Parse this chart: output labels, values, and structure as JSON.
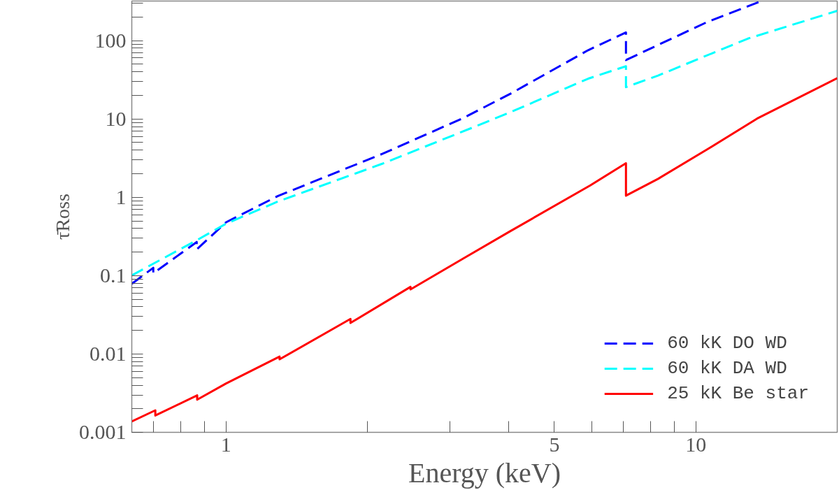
{
  "chart_data": {
    "type": "line",
    "xlabel": "Energy (keV)",
    "ylabel": "τ̄Ross",
    "log": "xy",
    "legend": "bottom right",
    "grid": false,
    "xlim": [
      0.63,
      20
    ],
    "ylim": [
      0.001,
      320
    ],
    "xticks": [
      {
        "value": 0.7,
        "label": null
      },
      {
        "value": 0.8,
        "label": null
      },
      {
        "value": 0.9,
        "label": null
      },
      1,
      {
        "value": 2,
        "label": null
      },
      {
        "value": 3,
        "label": null
      },
      {
        "value": 4,
        "label": null
      },
      5,
      {
        "value": 6,
        "label": null
      },
      {
        "value": 7,
        "label": null
      },
      {
        "value": 8,
        "label": null
      },
      {
        "value": 9,
        "label": null
      },
      10
    ],
    "yticks": [
      0.001,
      {
        "value": 0.002,
        "label": null
      },
      {
        "value": 0.003,
        "label": null
      },
      {
        "value": 0.004,
        "label": null
      },
      {
        "value": 0.005,
        "label": null
      },
      {
        "value": 0.006,
        "label": null
      },
      {
        "value": 0.007,
        "label": null
      },
      {
        "value": 0.008,
        "label": null
      },
      {
        "value": 0.009,
        "label": null
      },
      0.01,
      {
        "value": 0.02,
        "label": null
      },
      {
        "value": 0.03,
        "label": null
      },
      {
        "value": 0.04,
        "label": null
      },
      {
        "value": 0.05,
        "label": null
      },
      {
        "value": 0.06,
        "label": null
      },
      {
        "value": 0.07,
        "label": null
      },
      {
        "value": 0.08,
        "label": null
      },
      {
        "value": 0.09,
        "label": null
      },
      0.1,
      {
        "value": 0.2,
        "label": null
      },
      {
        "value": 0.3,
        "label": null
      },
      {
        "value": 0.4,
        "label": null
      },
      {
        "value": 0.5,
        "label": null
      },
      {
        "value": 0.6,
        "label": null
      },
      {
        "value": 0.7,
        "label": null
      },
      {
        "value": 0.8,
        "label": null
      },
      {
        "value": 0.9,
        "label": null
      },
      1,
      {
        "value": 2,
        "label": null
      },
      {
        "value": 3,
        "label": null
      },
      {
        "value": 4,
        "label": null
      },
      {
        "value": 5,
        "label": null
      },
      {
        "value": 6,
        "label": null
      },
      {
        "value": 7,
        "label": null
      },
      {
        "value": 8,
        "label": null
      },
      {
        "value": 9,
        "label": null
      },
      10,
      {
        "value": 20,
        "label": null
      },
      {
        "value": 30,
        "label": null
      },
      {
        "value": 40,
        "label": null
      },
      {
        "value": 50,
        "label": null
      },
      {
        "value": 60,
        "label": null
      },
      {
        "value": 70,
        "label": null
      },
      {
        "value": 80,
        "label": null
      },
      {
        "value": 90,
        "label": null
      },
      100,
      {
        "value": 200,
        "label": null
      },
      {
        "value": 300,
        "label": null
      }
    ],
    "series": [
      {
        "name": "60 kK DO WD",
        "color": "#0000ff",
        "line_style": "dashed",
        "x": [
          0.63,
          0.7,
          0.7,
          0.866,
          0.866,
          1.0,
          1.29,
          2.15,
          3.2,
          4.03,
          5.9,
          7.1,
          7.1,
          8.31,
          10.6,
          13.6
        ],
        "values": [
          0.0787,
          0.126,
          0.107,
          0.269,
          0.216,
          0.48,
          1.04,
          3.58,
          10.3,
          21.0,
          75.5,
          127,
          56.5,
          88,
          174,
          310
        ]
      },
      {
        "name": "60 kK DA WD",
        "color": "#00ffff",
        "line_style": "dashed",
        "x": [
          0.63,
          0.866,
          1.0,
          1.29,
          2.15,
          3.39,
          4.03,
          5.9,
          7.1,
          7.1,
          8.31,
          12.9,
          20
        ],
        "values": [
          0.101,
          0.283,
          0.46,
          0.885,
          2.68,
          8.0,
          12.2,
          32.7,
          47.1,
          25.5,
          35.8,
          106,
          240
        ]
      },
      {
        "name": "25 kK Be star",
        "color": "#ff0000",
        "line_style": "solid",
        "x": [
          0.63,
          0.707,
          0.707,
          0.868,
          0.868,
          1.0,
          1.3,
          1.3,
          1.84,
          1.84,
          2.47,
          2.47,
          3.2,
          4.03,
          5.96,
          7.1,
          7.1,
          8.31,
          10.6,
          13.5,
          20
        ],
        "values": [
          0.00138,
          0.00191,
          0.00164,
          0.00296,
          0.00261,
          0.0042,
          0.00927,
          0.00855,
          0.028,
          0.0249,
          0.0719,
          0.0667,
          0.166,
          0.37,
          1.42,
          2.72,
          1.05,
          1.72,
          4.13,
          10.1,
          33.2
        ]
      }
    ]
  }
}
